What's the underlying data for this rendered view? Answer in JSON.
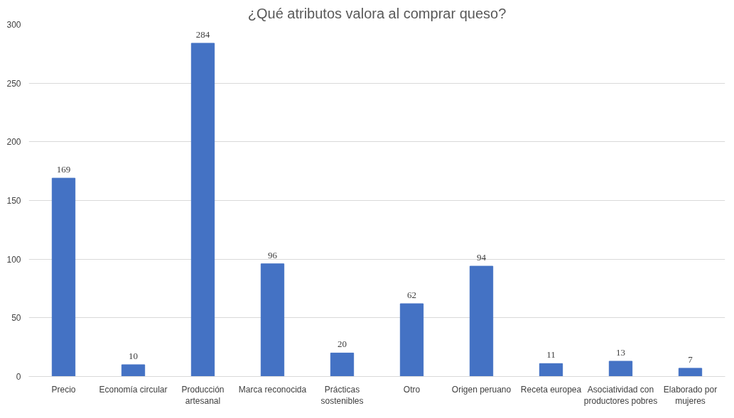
{
  "chart_data": {
    "type": "bar",
    "title": "¿Qué atributos valora al comprar queso?",
    "categories": [
      "Precio",
      "Economía circular",
      "Producción\nartesanal",
      "Marca reconocida",
      "Prácticas\nsostenibles",
      "Otro",
      "Origen peruano",
      "Receta europea",
      "Asociatividad con\nproductores pobres",
      "Elaborado por\nmujeres"
    ],
    "values": [
      169,
      10,
      284,
      96,
      20,
      62,
      94,
      11,
      13,
      7
    ],
    "color": "#4472c4",
    "ylim": [
      0,
      300
    ],
    "yticks": [
      0,
      50,
      100,
      150,
      200,
      250,
      300
    ],
    "grid": "y",
    "data_labels": true
  }
}
